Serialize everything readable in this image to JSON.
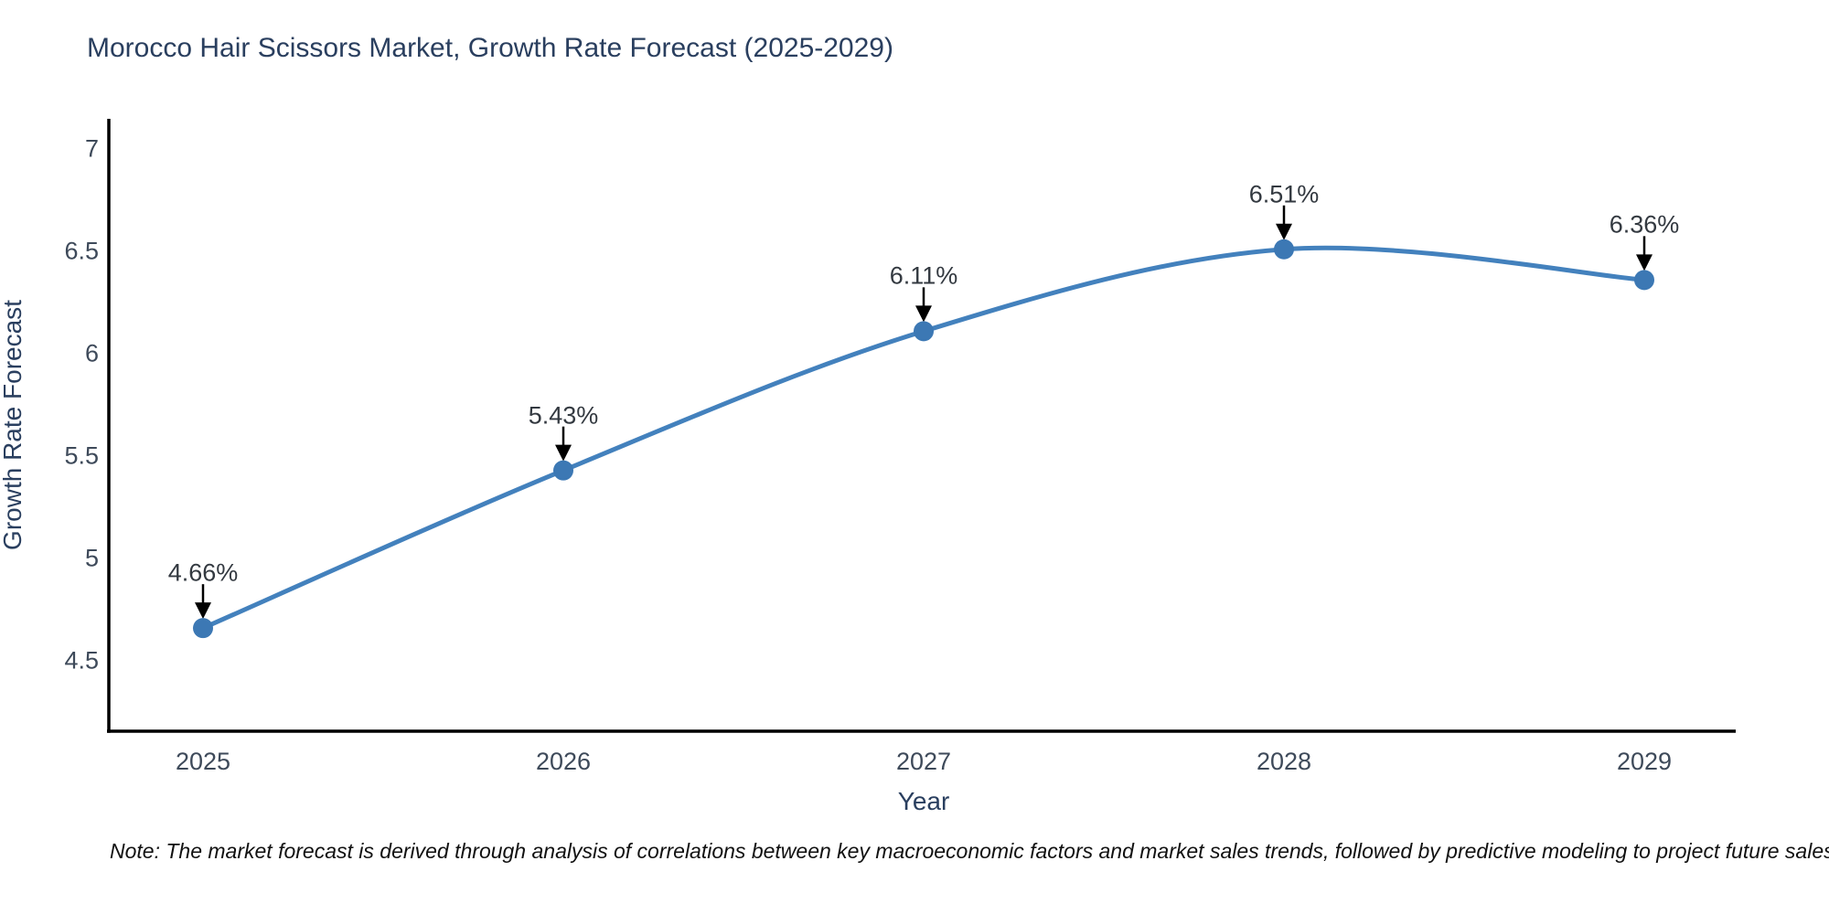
{
  "title": "Morocco Hair Scissors Market, Growth Rate Forecast (2025-2029)",
  "note": "Note: The market forecast is derived through analysis of correlations between key macroeconomic factors and market sales trends, followed by predictive modeling to project future sales",
  "chart_data": {
    "type": "line",
    "title": "Morocco Hair Scissors Market, Growth Rate Forecast (2025-2029)",
    "xlabel": "Year",
    "ylabel": "Growth Rate Forecast",
    "categories": [
      "2025",
      "2026",
      "2027",
      "2028",
      "2029"
    ],
    "values": [
      4.66,
      5.43,
      6.11,
      6.51,
      6.36
    ],
    "data_labels": [
      "4.66%",
      "5.43%",
      "6.11%",
      "6.51%",
      "6.36%"
    ],
    "y_ticks": [
      "7",
      "6.5",
      "6",
      "5.5",
      "5",
      "4.5"
    ],
    "ylim": [
      4.16,
      7.15
    ],
    "line_shape": "spline",
    "grid": false,
    "legend": "none",
    "marker": "circle",
    "annotation_arrows": "down",
    "colors": {
      "line": "#4381bd",
      "marker": "#3c78b4",
      "axis_line": "#000000",
      "arrow": "#000000",
      "title_text": "#2a3f5f",
      "tick_text": "#3e4a5a",
      "annotation_text": "#333940",
      "background": "#ffffff"
    }
  }
}
